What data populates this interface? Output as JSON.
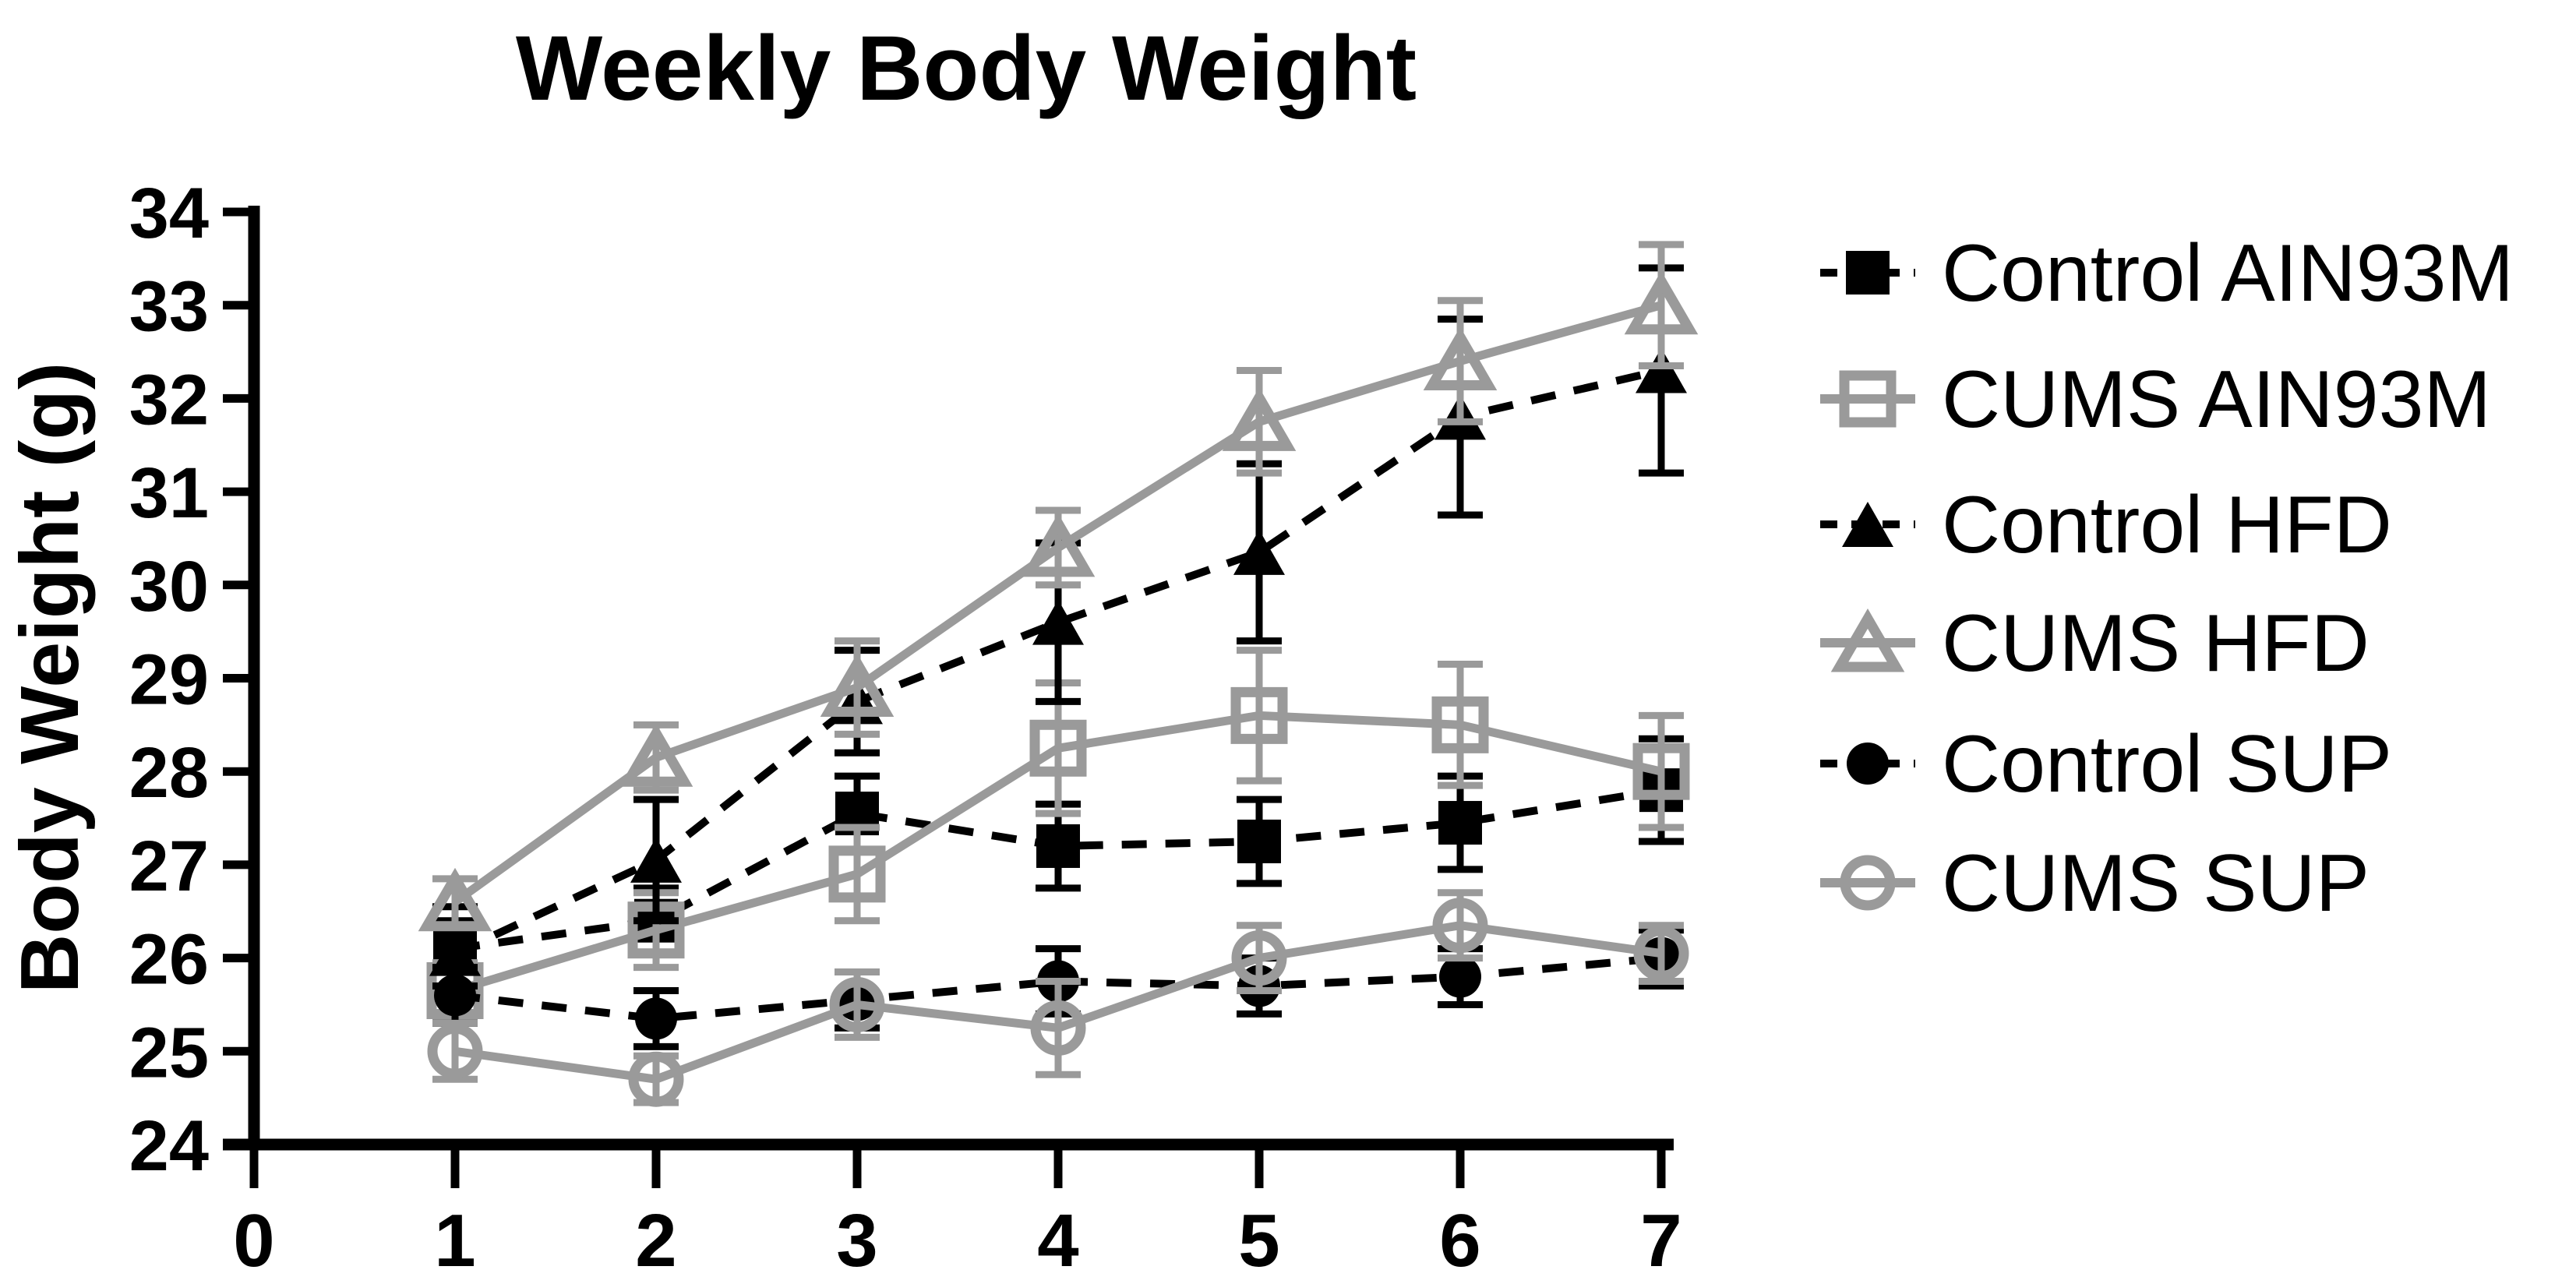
{
  "title": "Weekly Body Weight",
  "y_axis": {
    "label": "Body Weight (g)",
    "min": 24,
    "max": 34,
    "step": 1
  },
  "x_axis": {
    "min": 0,
    "max": 7,
    "step": 1
  },
  "colors": {
    "control_black": "#000000",
    "cums_gray": "#9a9a9a",
    "background": "#ffffff"
  },
  "legend": {
    "position": "right",
    "entries": [
      "Control AIN93M",
      "CUMS AIN93M",
      "Control HFD",
      "CUMS HFD",
      "Control SUP",
      "CUMS SUP"
    ]
  },
  "chart_data": {
    "type": "line",
    "title": "Weekly Body Weight",
    "xlabel": "",
    "ylabel": "Body Weight (g)",
    "x": [
      1,
      2,
      3,
      4,
      5,
      6,
      7
    ],
    "xlim": [
      0,
      7
    ],
    "ylim": [
      24,
      34
    ],
    "grid": false,
    "legend_position": "right",
    "error_bars": true,
    "series": [
      {
        "name": "Control AIN93M",
        "color": "#000000",
        "line": "dashed",
        "marker": "square",
        "fill": "filled",
        "values": [
          26.1,
          26.4,
          27.55,
          27.2,
          27.25,
          27.45,
          27.8
        ],
        "errors": [
          0.45,
          0.35,
          0.4,
          0.45,
          0.45,
          0.5,
          0.55
        ]
      },
      {
        "name": "CUMS AIN93M",
        "color": "#9a9a9a",
        "line": "solid",
        "marker": "square",
        "fill": "open",
        "values": [
          25.65,
          26.3,
          26.9,
          28.25,
          28.6,
          28.5,
          28.0
        ],
        "errors": [
          0.3,
          0.4,
          0.5,
          0.7,
          0.7,
          0.65,
          0.6
        ]
      },
      {
        "name": "Control HFD",
        "color": "#000000",
        "line": "dashed",
        "marker": "triangle",
        "fill": "filled",
        "values": [
          26.05,
          27.05,
          28.75,
          29.6,
          30.35,
          31.8,
          32.3
        ],
        "errors": [
          0.35,
          0.65,
          0.55,
          0.85,
          0.95,
          1.05,
          1.1
        ]
      },
      {
        "name": "CUMS HFD",
        "color": "#9a9a9a",
        "line": "solid",
        "marker": "triangle",
        "fill": "open",
        "values": [
          26.6,
          28.15,
          28.9,
          30.4,
          31.75,
          32.4,
          33.0
        ],
        "errors": [
          0.25,
          0.35,
          0.5,
          0.4,
          0.55,
          0.65,
          0.65
        ]
      },
      {
        "name": "Control SUP",
        "color": "#000000",
        "line": "dashed",
        "marker": "circle",
        "fill": "filled",
        "values": [
          25.6,
          25.35,
          25.55,
          25.75,
          25.7,
          25.8,
          26.0
        ],
        "errors": [
          0.3,
          0.3,
          0.3,
          0.35,
          0.3,
          0.3,
          0.3
        ]
      },
      {
        "name": "CUMS SUP",
        "color": "#9a9a9a",
        "line": "solid",
        "marker": "circle",
        "fill": "open",
        "values": [
          25.0,
          24.7,
          25.5,
          25.25,
          26.0,
          26.35,
          26.05
        ],
        "errors": [
          0.3,
          0.25,
          0.35,
          0.5,
          0.35,
          0.35,
          0.3
        ]
      }
    ]
  }
}
